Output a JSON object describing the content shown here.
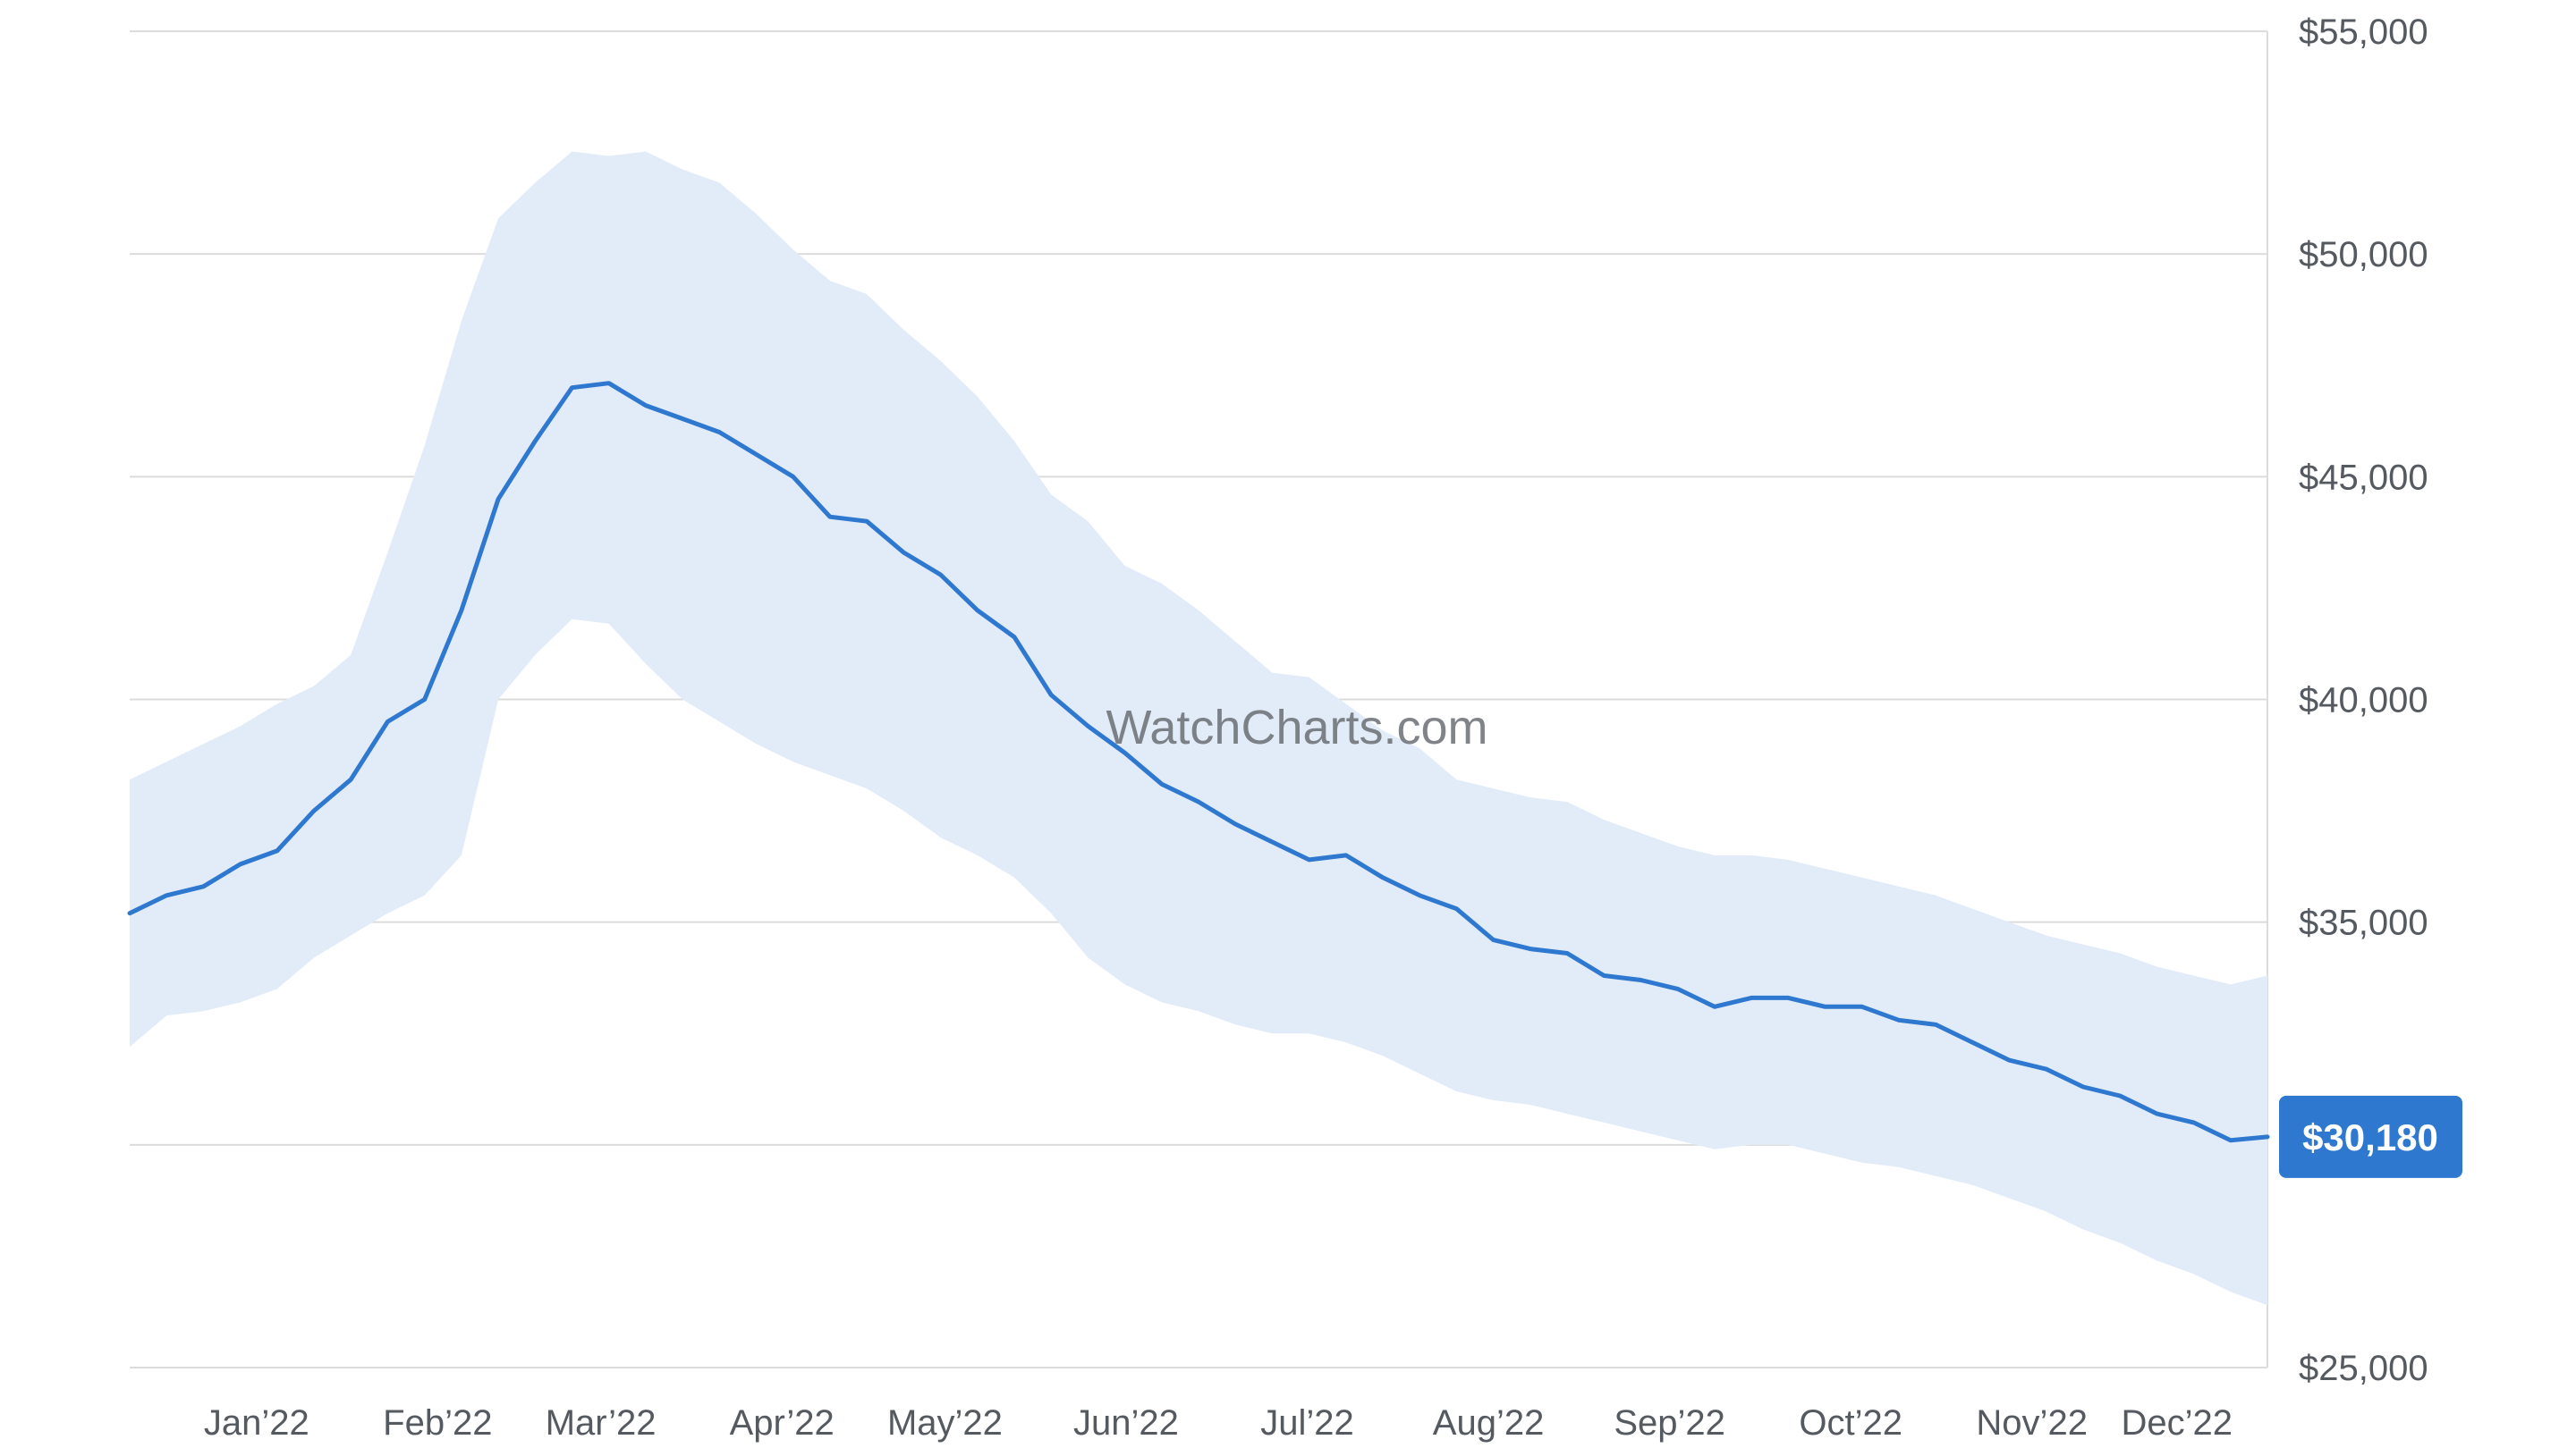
{
  "watermark": "WatchCharts.com",
  "colors": {
    "line": "#2f78d0",
    "band": "#e2ecf8",
    "grid": "#dcdcdc",
    "badge": "#2f78d0"
  },
  "chart_data": {
    "type": "area",
    "title": "",
    "xlabel": "",
    "ylabel": "",
    "ylim": [
      25000,
      55000
    ],
    "y_ticks": [
      25000,
      35000,
      40000,
      45000,
      50000,
      55000
    ],
    "y_tick_labels": [
      "$25,000",
      "$35,000",
      "$40,000",
      "$45,000",
      "$50,000",
      "$55,000"
    ],
    "x_tick_labels": [
      "Jan’22",
      "Feb’22",
      "Mar’22",
      "Apr’22",
      "May’22",
      "Jun’22",
      "Jul’22",
      "Aug’22",
      "Sep’22",
      "Oct’22",
      "Nov’22",
      "Dec’22"
    ],
    "x_tick_weeks": [
      3.5,
      8.5,
      13,
      18,
      22.5,
      27.5,
      32.5,
      37.5,
      42.5,
      47.5,
      52.5,
      56.5
    ],
    "x_weeks_range": [
      0,
      59
    ],
    "grid": true,
    "last_value_label": "$30,180",
    "last_value": 30180,
    "series": [
      {
        "name": "",
        "role": "median",
        "values": [
          35200,
          35600,
          35800,
          36300,
          36600,
          37500,
          38200,
          39500,
          40000,
          42000,
          44500,
          45800,
          47000,
          47100,
          46600,
          46300,
          46000,
          45500,
          45000,
          44100,
          44000,
          43300,
          42800,
          42000,
          41400,
          40100,
          39400,
          38800,
          38100,
          37700,
          37200,
          36800,
          36400,
          36500,
          36000,
          35600,
          35300,
          34600,
          34400,
          34300,
          33800,
          33700,
          33500,
          33100,
          33300,
          33300,
          33100,
          33100,
          32800,
          32700,
          32300,
          31900,
          31700,
          31300,
          31100,
          30700,
          30500,
          30100,
          30180
        ]
      },
      {
        "name": "",
        "role": "band-upper",
        "values": [
          38200,
          38600,
          39000,
          39400,
          39900,
          40300,
          41000,
          43300,
          45700,
          48500,
          50800,
          51600,
          52300,
          52200,
          52300,
          51900,
          51600,
          50900,
          50100,
          49400,
          49100,
          48300,
          47600,
          46800,
          45800,
          44600,
          44000,
          43000,
          42600,
          42000,
          41300,
          40600,
          40500,
          39900,
          39300,
          38900,
          38200,
          38000,
          37800,
          37700,
          37300,
          37000,
          36700,
          36500,
          36500,
          36400,
          36200,
          36000,
          35800,
          35600,
          35300,
          35000,
          34700,
          34500,
          34300,
          34000,
          33800,
          33600,
          33800
        ]
      },
      {
        "name": "",
        "role": "band-lower",
        "values": [
          32200,
          32900,
          33000,
          33200,
          33500,
          34200,
          34700,
          35200,
          35600,
          36500,
          40000,
          41000,
          41800,
          41700,
          40800,
          40000,
          39500,
          39000,
          38600,
          38300,
          38000,
          37500,
          36900,
          36500,
          36000,
          35200,
          34200,
          33600,
          33200,
          33000,
          32700,
          32500,
          32500,
          32300,
          32000,
          31600,
          31200,
          31000,
          30900,
          30700,
          30500,
          30300,
          30100,
          29900,
          30000,
          30000,
          29800,
          29600,
          29500,
          29300,
          29100,
          28800,
          28500,
          28100,
          27800,
          27400,
          27100,
          26700,
          26400
        ]
      }
    ]
  }
}
